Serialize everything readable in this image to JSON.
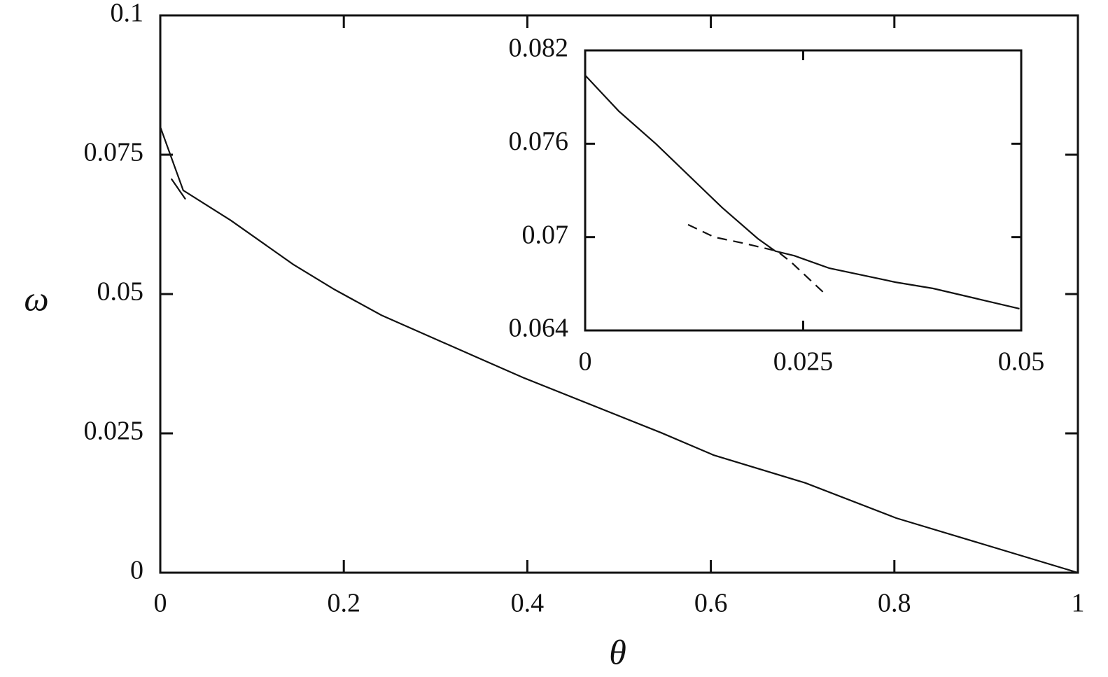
{
  "chart_data": [
    {
      "type": "line",
      "xlabel": "θ",
      "ylabel": "ω",
      "xlim": [
        0,
        1
      ],
      "ylim": [
        0,
        0.1
      ],
      "xticks": [
        0,
        0.2,
        0.4,
        0.6,
        0.8,
        1
      ],
      "yticks": [
        0,
        0.025,
        0.05,
        0.075,
        0.1
      ],
      "series": [
        {
          "color": "#111111",
          "style": "solid",
          "x": [
            0,
            0.025,
            0.077,
            0.145,
            0.19,
            0.241,
            0.336,
            0.397,
            0.546,
            0.603,
            0.703,
            0.802,
            1
          ],
          "values": [
            0.08,
            0.0686,
            0.0632,
            0.0553,
            0.0508,
            0.0462,
            0.0393,
            0.0349,
            0.0251,
            0.0211,
            0.0161,
            0.0098,
            0
          ]
        },
        {
          "color": "#111111",
          "style": "solid",
          "x": [
            0.012,
            0.0275
          ],
          "values": [
            0.0707,
            0.067
          ]
        }
      ]
    },
    {
      "type": "line",
      "xlim": [
        0,
        0.05
      ],
      "ylim": [
        0.064,
        0.082
      ],
      "xticks": [
        0,
        0.025,
        0.05
      ],
      "yticks": [
        0.064,
        0.07,
        0.076,
        0.082
      ],
      "series": [
        {
          "color": "#111111",
          "style": "solid",
          "x": [
            0,
            0.00385,
            0.0081,
            0.0157,
            0.0198,
            0.0218,
            0.024,
            0.028,
            0.0356,
            0.0399,
            0.0498
          ],
          "values": [
            0.0804,
            0.0781,
            0.076,
            0.0719,
            0.0699,
            0.0691,
            0.0688,
            0.068,
            0.0671,
            0.0667,
            0.0654
          ]
        },
        {
          "color": "#111111",
          "style": "dashed",
          "x": [
            0.0118,
            0.0148,
            0.0182,
            0.022,
            0.0236,
            0.0276
          ],
          "values": [
            0.0708,
            0.07,
            0.0696,
            0.0691,
            0.0684,
            0.0663
          ]
        }
      ]
    }
  ]
}
